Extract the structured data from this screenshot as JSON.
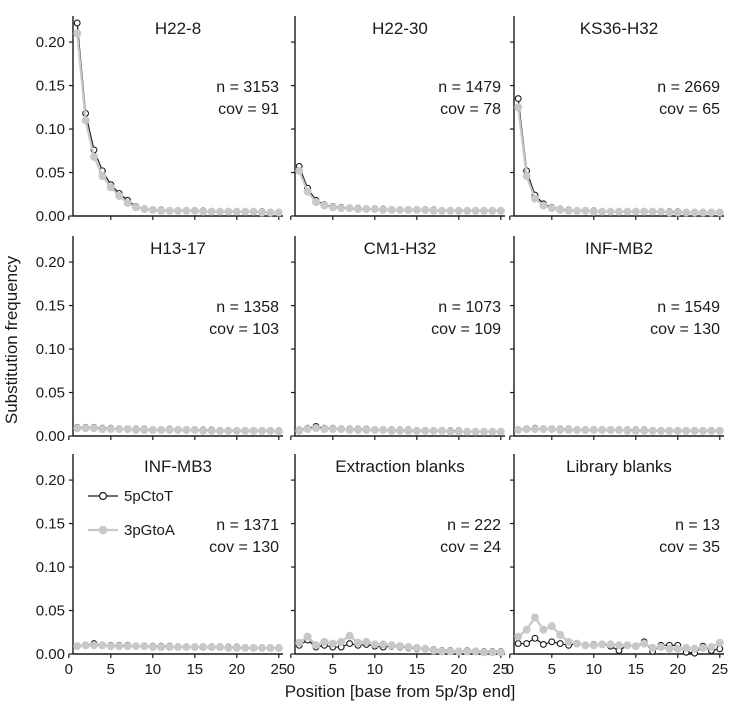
{
  "chart_data": {
    "type": "line",
    "ylabel": "Substitution frequency",
    "xlabel": "Position [base from 5p/3p end]",
    "ylim": [
      0,
      0.23
    ],
    "xlim": [
      0.5,
      25.5
    ],
    "x_ticks": [
      0,
      5,
      10,
      15,
      20,
      25
    ],
    "y_ticks": [
      0.0,
      0.05,
      0.1,
      0.15,
      0.2
    ],
    "y_tick_labels": [
      "0.00",
      "0.05",
      "0.10",
      "0.15",
      "0.20"
    ],
    "x": [
      1,
      2,
      3,
      4,
      5,
      6,
      7,
      8,
      9,
      10,
      11,
      12,
      13,
      14,
      15,
      16,
      17,
      18,
      19,
      20,
      21,
      22,
      23,
      24,
      25
    ],
    "legend": {
      "placement": "inside bottom-left panel, top-left",
      "entries": [
        {
          "name": "5pCtoT",
          "color": "#1a1a1a",
          "marker": "open-circle"
        },
        {
          "name": "3pGtoA",
          "color": "#c8c8c8",
          "marker": "filled-circle"
        }
      ]
    },
    "grid": false,
    "panels": [
      {
        "title": "H22-8",
        "n_label": "n = 3153",
        "cov_label": "cov = 91",
        "series": [
          {
            "name": "5pCtoT",
            "values": [
              0.222,
              0.118,
              0.076,
              0.052,
              0.036,
              0.026,
              0.018,
              0.011,
              0.008,
              0.007,
              0.007,
              0.006,
              0.006,
              0.006,
              0.006,
              0.006,
              0.005,
              0.005,
              0.005,
              0.005,
              0.005,
              0.005,
              0.005,
              0.004,
              0.004
            ]
          },
          {
            "name": "3pGtoA",
            "values": [
              0.21,
              0.11,
              0.068,
              0.046,
              0.033,
              0.023,
              0.015,
              0.01,
              0.008,
              0.007,
              0.006,
              0.006,
              0.006,
              0.006,
              0.006,
              0.005,
              0.005,
              0.005,
              0.005,
              0.005,
              0.005,
              0.005,
              0.004,
              0.004,
              0.004
            ]
          }
        ]
      },
      {
        "title": "H22-30",
        "n_label": "n = 1479",
        "cov_label": "cov = 78",
        "series": [
          {
            "name": "5pCtoT",
            "values": [
              0.057,
              0.032,
              0.018,
              0.013,
              0.011,
              0.01,
              0.009,
              0.009,
              0.008,
              0.008,
              0.008,
              0.007,
              0.007,
              0.007,
              0.007,
              0.007,
              0.007,
              0.006,
              0.006,
              0.006,
              0.006,
              0.006,
              0.006,
              0.006,
              0.006
            ]
          },
          {
            "name": "3pGtoA",
            "values": [
              0.052,
              0.028,
              0.016,
              0.012,
              0.01,
              0.009,
              0.009,
              0.008,
              0.008,
              0.008,
              0.007,
              0.007,
              0.007,
              0.007,
              0.007,
              0.007,
              0.006,
              0.006,
              0.006,
              0.006,
              0.006,
              0.006,
              0.006,
              0.006,
              0.006
            ]
          }
        ]
      },
      {
        "title": "KS36-H32",
        "n_label": "n = 2669",
        "cov_label": "cov = 65",
        "series": [
          {
            "name": "5pCtoT",
            "values": [
              0.135,
              0.052,
              0.024,
              0.014,
              0.01,
              0.008,
              0.007,
              0.006,
              0.006,
              0.006,
              0.005,
              0.005,
              0.005,
              0.005,
              0.005,
              0.005,
              0.005,
              0.005,
              0.005,
              0.005,
              0.004,
              0.004,
              0.004,
              0.004,
              0.004
            ]
          },
          {
            "name": "3pGtoA",
            "values": [
              0.125,
              0.046,
              0.02,
              0.012,
              0.009,
              0.007,
              0.006,
              0.006,
              0.006,
              0.005,
              0.005,
              0.005,
              0.005,
              0.005,
              0.005,
              0.005,
              0.005,
              0.005,
              0.004,
              0.004,
              0.004,
              0.004,
              0.004,
              0.004,
              0.004
            ]
          }
        ]
      },
      {
        "title": "H13-17",
        "n_label": "n = 1358",
        "cov_label": "cov = 103",
        "series": [
          {
            "name": "5pCtoT",
            "values": [
              0.01,
              0.01,
              0.01,
              0.009,
              0.009,
              0.008,
              0.008,
              0.008,
              0.008,
              0.007,
              0.007,
              0.008,
              0.007,
              0.007,
              0.007,
              0.007,
              0.007,
              0.006,
              0.006,
              0.006,
              0.006,
              0.006,
              0.006,
              0.006,
              0.006
            ]
          },
          {
            "name": "3pGtoA",
            "values": [
              0.009,
              0.009,
              0.009,
              0.008,
              0.008,
              0.008,
              0.008,
              0.007,
              0.007,
              0.007,
              0.007,
              0.007,
              0.007,
              0.007,
              0.007,
              0.006,
              0.006,
              0.006,
              0.006,
              0.006,
              0.006,
              0.006,
              0.006,
              0.006,
              0.005
            ]
          }
        ]
      },
      {
        "title": "CM1-H32",
        "n_label": "n = 1073",
        "cov_label": "cov = 109",
        "series": [
          {
            "name": "5pCtoT",
            "values": [
              0.007,
              0.009,
              0.011,
              0.009,
              0.009,
              0.008,
              0.008,
              0.008,
              0.008,
              0.007,
              0.007,
              0.007,
              0.007,
              0.007,
              0.006,
              0.006,
              0.006,
              0.006,
              0.006,
              0.006,
              0.005,
              0.005,
              0.005,
              0.005,
              0.005
            ]
          },
          {
            "name": "3pGtoA",
            "values": [
              0.006,
              0.008,
              0.009,
              0.008,
              0.008,
              0.008,
              0.007,
              0.007,
              0.007,
              0.007,
              0.007,
              0.006,
              0.006,
              0.006,
              0.006,
              0.006,
              0.006,
              0.006,
              0.005,
              0.005,
              0.005,
              0.005,
              0.005,
              0.005,
              0.005
            ]
          }
        ]
      },
      {
        "title": "INF-MB2",
        "n_label": "n = 1549",
        "cov_label": "cov = 130",
        "series": [
          {
            "name": "5pCtoT",
            "values": [
              0.007,
              0.008,
              0.009,
              0.008,
              0.008,
              0.008,
              0.008,
              0.007,
              0.007,
              0.007,
              0.007,
              0.007,
              0.007,
              0.007,
              0.007,
              0.007,
              0.006,
              0.006,
              0.006,
              0.006,
              0.006,
              0.006,
              0.006,
              0.006,
              0.006
            ]
          },
          {
            "name": "3pGtoA",
            "values": [
              0.007,
              0.008,
              0.008,
              0.008,
              0.008,
              0.007,
              0.007,
              0.007,
              0.007,
              0.007,
              0.007,
              0.007,
              0.007,
              0.006,
              0.006,
              0.006,
              0.006,
              0.006,
              0.006,
              0.006,
              0.006,
              0.006,
              0.006,
              0.006,
              0.006
            ]
          }
        ]
      },
      {
        "title": "INF-MB3",
        "n_label": "n = 1371",
        "cov_label": "cov = 130",
        "series": [
          {
            "name": "5pCtoT",
            "values": [
              0.009,
              0.01,
              0.012,
              0.01,
              0.01,
              0.01,
              0.01,
              0.009,
              0.009,
              0.009,
              0.009,
              0.009,
              0.008,
              0.008,
              0.008,
              0.008,
              0.008,
              0.008,
              0.008,
              0.008,
              0.007,
              0.007,
              0.007,
              0.007,
              0.007
            ]
          },
          {
            "name": "3pGtoA",
            "values": [
              0.009,
              0.01,
              0.01,
              0.01,
              0.009,
              0.009,
              0.009,
              0.009,
              0.009,
              0.008,
              0.008,
              0.008,
              0.008,
              0.008,
              0.008,
              0.008,
              0.008,
              0.008,
              0.007,
              0.007,
              0.007,
              0.007,
              0.007,
              0.007,
              0.007
            ]
          }
        ]
      },
      {
        "title": "Extraction blanks",
        "n_label": "n = 222",
        "cov_label": "cov = 24",
        "series": [
          {
            "name": "5pCtoT",
            "values": [
              0.01,
              0.016,
              0.008,
              0.01,
              0.008,
              0.008,
              0.012,
              0.01,
              0.011,
              0.009,
              0.008,
              0.009,
              0.008,
              0.007,
              0.006,
              0.006,
              0.005,
              0.004,
              0.004,
              0.003,
              0.004,
              0.003,
              0.003,
              0.003,
              0.003
            ]
          },
          {
            "name": "3pGtoA",
            "values": [
              0.013,
              0.02,
              0.01,
              0.014,
              0.012,
              0.014,
              0.021,
              0.013,
              0.014,
              0.011,
              0.011,
              0.01,
              0.009,
              0.008,
              0.007,
              0.006,
              0.004,
              0.003,
              0.003,
              0.003,
              0.003,
              0.003,
              0.002,
              0.002,
              0.002
            ]
          }
        ]
      },
      {
        "title": "Library blanks",
        "n_label": "n = 13",
        "cov_label": "cov = 35",
        "series": [
          {
            "name": "5pCtoT",
            "values": [
              0.012,
              0.012,
              0.018,
              0.011,
              0.014,
              0.012,
              0.01,
              0.012,
              0.01,
              0.011,
              0.011,
              0.009,
              0.004,
              0.01,
              0.009,
              0.014,
              0.003,
              0.01,
              0.01,
              0.01,
              0.002,
              0.001,
              0.009,
              0.004,
              0.006
            ]
          },
          {
            "name": "3pGtoA",
            "values": [
              0.02,
              0.028,
              0.042,
              0.028,
              0.032,
              0.022,
              0.014,
              0.012,
              0.01,
              0.01,
              0.011,
              0.011,
              0.01,
              0.01,
              0.009,
              0.012,
              0.007,
              0.008,
              0.006,
              0.006,
              0.007,
              0.006,
              0.007,
              0.008,
              0.013
            ]
          }
        ]
      }
    ]
  }
}
